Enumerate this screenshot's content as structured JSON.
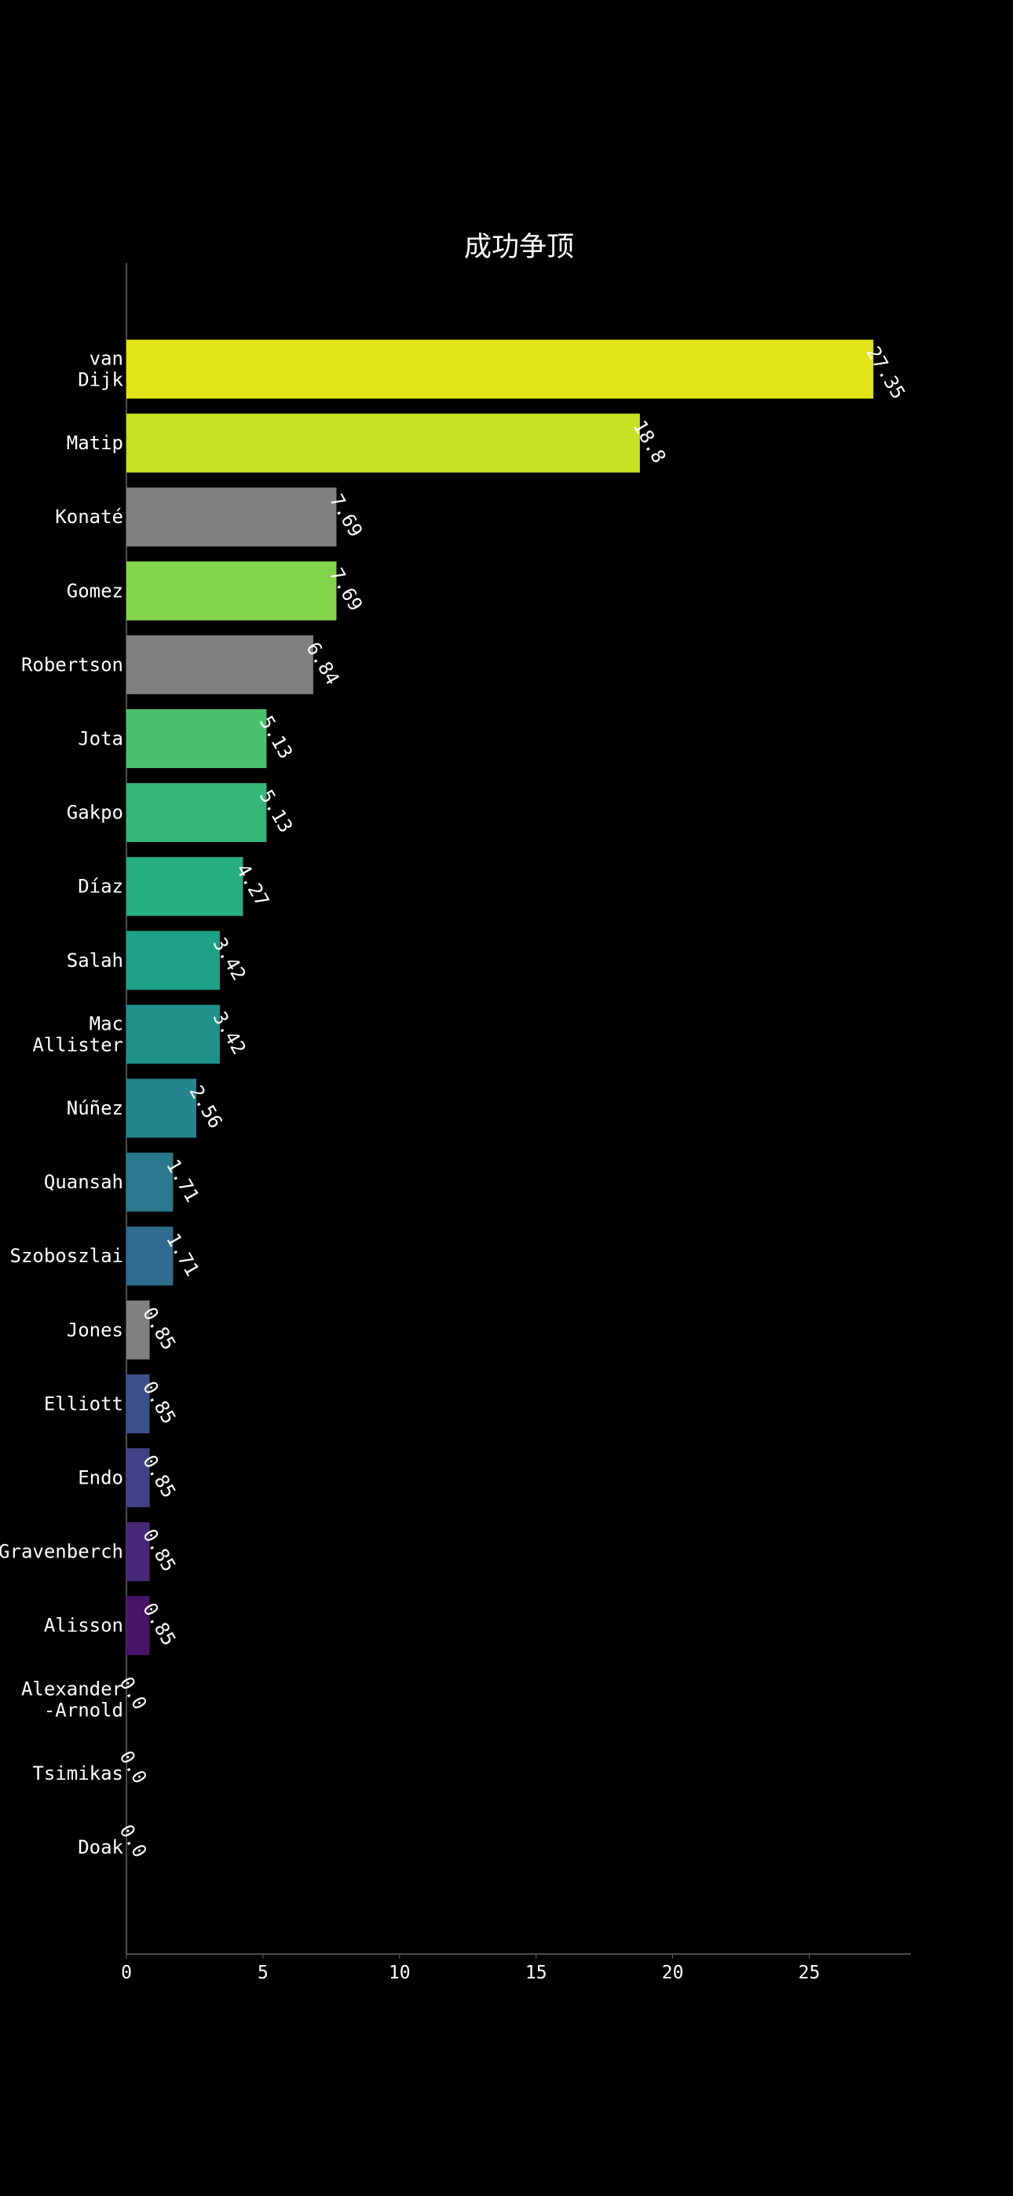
{
  "chart_data": {
    "type": "bar",
    "orientation": "horizontal",
    "title": "成功争顶",
    "xlabel": "",
    "ylabel": "",
    "xlim": [
      0,
      28.7
    ],
    "xticks": [
      0,
      5,
      10,
      15,
      20,
      25
    ],
    "grid": false,
    "legend": "none",
    "categories": [
      "van Dijk",
      "Matip",
      "Konaté",
      "Gomez",
      "Robertson",
      "Jota",
      "Gakpo",
      "Díaz",
      "Salah",
      "Mac Allister",
      "Núñez",
      "Quansah",
      "Szoboszlai",
      "Jones",
      "Elliott",
      "Endo",
      "Gravenberch",
      "Alisson",
      "Alexander-Arnold",
      "Tsimikas",
      "Doak"
    ],
    "category_label_lines": [
      [
        "van",
        "Dijk"
      ],
      [
        "Matip"
      ],
      [
        "Konaté"
      ],
      [
        "Gomez"
      ],
      [
        "Robertson"
      ],
      [
        "Jota"
      ],
      [
        "Gakpo"
      ],
      [
        "Díaz"
      ],
      [
        "Salah"
      ],
      [
        "Mac",
        "Allister"
      ],
      [
        "Núñez"
      ],
      [
        "Quansah"
      ],
      [
        "Szoboszlai"
      ],
      [
        "Jones"
      ],
      [
        "Elliott"
      ],
      [
        "Endo"
      ],
      [
        "Gravenberch"
      ],
      [
        "Alisson"
      ],
      [
        "Alexander",
        "-Arnold"
      ],
      [
        "Tsimikas"
      ],
      [
        "Doak"
      ]
    ],
    "values": [
      27.35,
      18.8,
      7.69,
      7.69,
      6.84,
      5.13,
      5.13,
      4.27,
      3.42,
      3.42,
      2.56,
      1.71,
      1.71,
      0.85,
      0.85,
      0.85,
      0.85,
      0.85,
      0.0,
      0.0,
      0.0
    ],
    "value_labels": [
      "27.35",
      "18.8",
      "7.69",
      "7.69",
      "6.84",
      "5.13",
      "5.13",
      "4.27",
      "3.42",
      "3.42",
      "2.56",
      "1.71",
      "1.71",
      "0.85",
      "0.85",
      "0.85",
      "0.85",
      "0.85",
      "0.0",
      "0.0",
      "0.0"
    ],
    "bar_colors": [
      "#e2e418",
      "#c5e021",
      "#808080",
      "#84d44b",
      "#808080",
      "#4ac16d",
      "#35b779",
      "#26ad81",
      "#1fa187",
      "#21918c",
      "#25858e",
      "#2a788e",
      "#2f6c8e",
      "#808080",
      "#3b518b",
      "#424086",
      "#482979",
      "#481467",
      "#440154",
      "#440154",
      "#440154"
    ],
    "colors": {
      "background": "#000000",
      "text": "#ffffff",
      "axis": "#666666"
    }
  }
}
